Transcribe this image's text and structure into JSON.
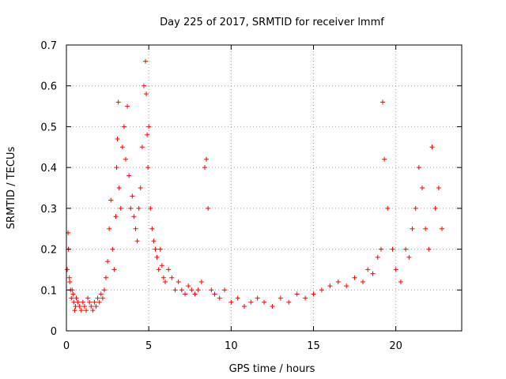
{
  "chart_data": {
    "type": "scatter",
    "title": "Day 225 of 2017, SRMTID for receiver lmmf",
    "xlabel": "GPS time / hours",
    "ylabel": "SRMTID / TECUs",
    "xlim": [
      0,
      24
    ],
    "ylim": [
      0,
      0.7
    ],
    "xticks": [
      0,
      5,
      10,
      15,
      20
    ],
    "xtick_labels": [
      "0",
      "5",
      "10",
      "15",
      "20"
    ],
    "yticks": [
      0,
      0.1,
      0.2,
      0.3,
      0.4,
      0.5,
      0.6,
      0.7
    ],
    "ytick_labels": [
      "0",
      "0.1",
      "0.2",
      "0.3",
      "0.4",
      "0.5",
      "0.6",
      "0.7"
    ],
    "grid": true,
    "marker": "+",
    "marker_color": "#ff0000",
    "series": [
      {
        "name": "SRMTID",
        "x": [
          0.05,
          0.1,
          0.12,
          0.18,
          0.2,
          0.25,
          0.3,
          0.35,
          0.4,
          0.45,
          0.5,
          0.55,
          0.6,
          0.7,
          0.8,
          0.9,
          1.0,
          1.1,
          1.2,
          1.3,
          1.4,
          1.5,
          1.6,
          1.7,
          1.8,
          1.9,
          2.0,
          2.1,
          2.2,
          2.3,
          2.4,
          2.5,
          2.6,
          2.7,
          2.8,
          2.9,
          3.0,
          3.05,
          3.1,
          3.15,
          3.2,
          3.3,
          3.4,
          3.5,
          3.6,
          3.7,
          3.8,
          3.9,
          4.0,
          4.1,
          4.2,
          4.3,
          4.4,
          4.5,
          4.6,
          4.7,
          4.8,
          4.85,
          4.9,
          4.95,
          5.0,
          5.1,
          5.2,
          5.3,
          5.4,
          5.5,
          5.6,
          5.7,
          5.8,
          5.9,
          6.0,
          6.2,
          6.4,
          6.6,
          6.8,
          7.0,
          7.2,
          7.4,
          7.6,
          7.8,
          8.0,
          8.2,
          8.4,
          8.5,
          8.6,
          8.8,
          9.0,
          9.3,
          9.6,
          10.0,
          10.4,
          10.8,
          11.2,
          11.6,
          12.0,
          12.5,
          13.0,
          13.5,
          14.0,
          14.5,
          15.0,
          15.5,
          16.0,
          16.5,
          17.0,
          17.5,
          18.0,
          18.3,
          18.6,
          18.9,
          19.1,
          19.2,
          19.3,
          19.5,
          19.8,
          20.0,
          20.3,
          20.6,
          20.8,
          21.0,
          21.2,
          21.4,
          21.6,
          21.8,
          22.0,
          22.2,
          22.4,
          22.6,
          22.8
        ],
        "y": [
          0.15,
          0.24,
          0.2,
          0.13,
          0.12,
          0.1,
          0.08,
          0.1,
          0.09,
          0.07,
          0.05,
          0.06,
          0.08,
          0.07,
          0.06,
          0.05,
          0.07,
          0.06,
          0.05,
          0.08,
          0.07,
          0.06,
          0.05,
          0.07,
          0.06,
          0.08,
          0.07,
          0.09,
          0.08,
          0.1,
          0.13,
          0.17,
          0.25,
          0.32,
          0.2,
          0.15,
          0.28,
          0.4,
          0.47,
          0.56,
          0.35,
          0.3,
          0.45,
          0.5,
          0.42,
          0.55,
          0.38,
          0.3,
          0.33,
          0.28,
          0.25,
          0.22,
          0.3,
          0.35,
          0.45,
          0.6,
          0.66,
          0.58,
          0.48,
          0.4,
          0.5,
          0.3,
          0.25,
          0.22,
          0.2,
          0.18,
          0.15,
          0.2,
          0.16,
          0.13,
          0.12,
          0.15,
          0.13,
          0.1,
          0.12,
          0.1,
          0.09,
          0.11,
          0.1,
          0.09,
          0.1,
          0.12,
          0.4,
          0.42,
          0.3,
          0.1,
          0.09,
          0.08,
          0.1,
          0.07,
          0.08,
          0.06,
          0.07,
          0.08,
          0.07,
          0.06,
          0.08,
          0.07,
          0.09,
          0.08,
          0.09,
          0.1,
          0.11,
          0.12,
          0.11,
          0.13,
          0.12,
          0.15,
          0.14,
          0.18,
          0.2,
          0.56,
          0.42,
          0.3,
          0.2,
          0.15,
          0.12,
          0.2,
          0.18,
          0.25,
          0.3,
          0.4,
          0.35,
          0.25,
          0.2,
          0.45,
          0.3,
          0.35,
          0.25
        ]
      }
    ]
  }
}
